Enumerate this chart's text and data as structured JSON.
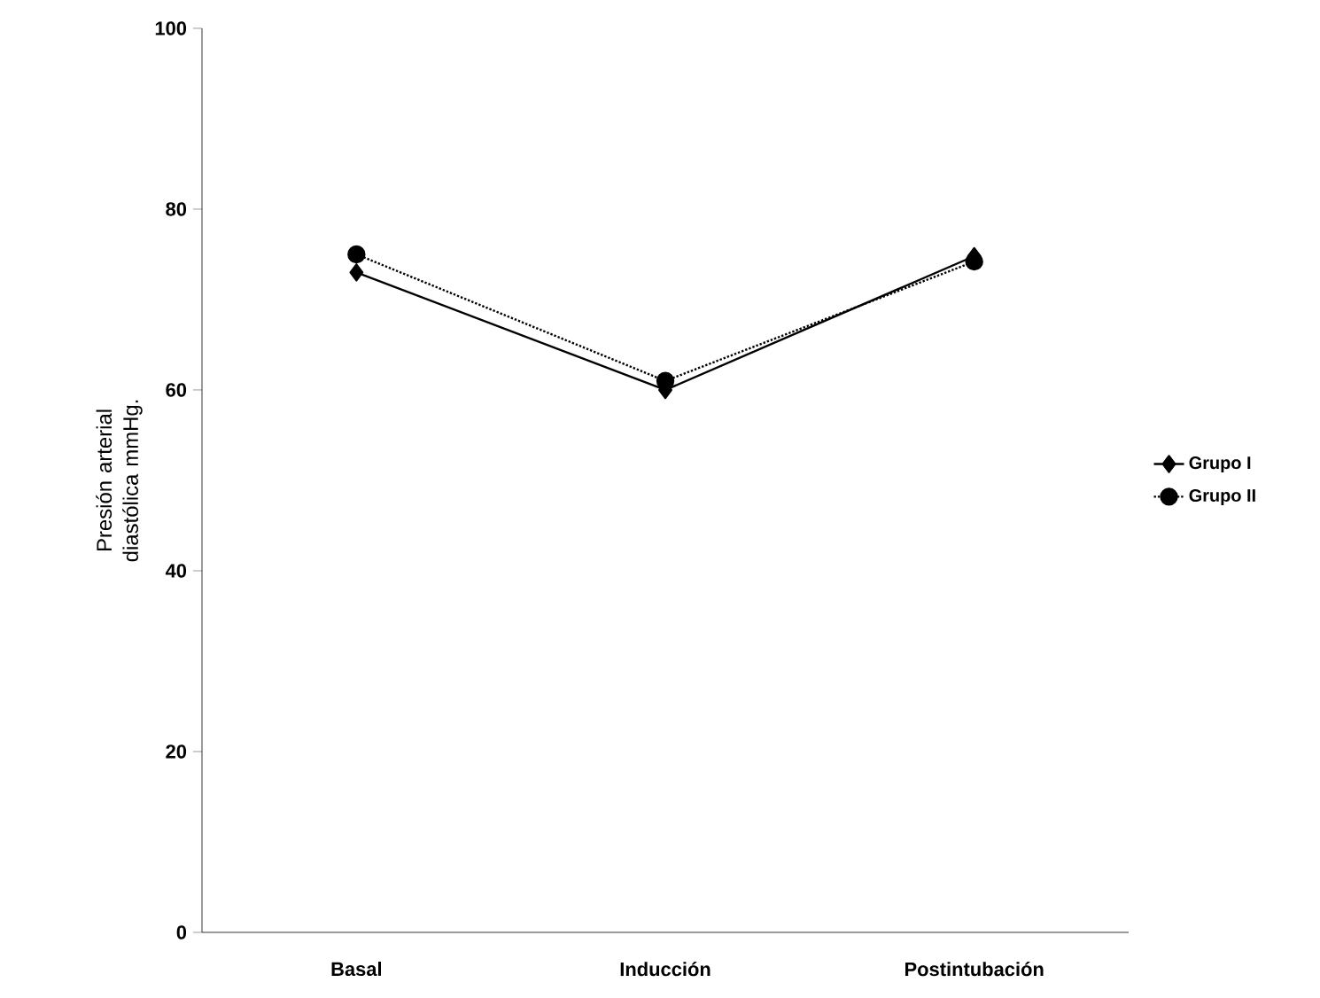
{
  "chart_data": {
    "type": "line",
    "ylabel": "Presión arterial diastólica mmHg.",
    "categories": [
      "Basal",
      "Inducción",
      "Postintubación"
    ],
    "series": [
      {
        "name": "Grupo I",
        "color": "#000000",
        "values": [
          73,
          60,
          74.8
        ],
        "marker": "diamond",
        "line_style": "solid"
      },
      {
        "name": "Grupo II",
        "color": "#000000",
        "values": [
          75,
          61,
          74.2
        ],
        "marker": "circle",
        "line_style": "dotted"
      }
    ],
    "ylim": [
      0,
      100
    ],
    "yticks": [
      0,
      20,
      40,
      60,
      80,
      100
    ],
    "grid": false,
    "legend": "right"
  }
}
